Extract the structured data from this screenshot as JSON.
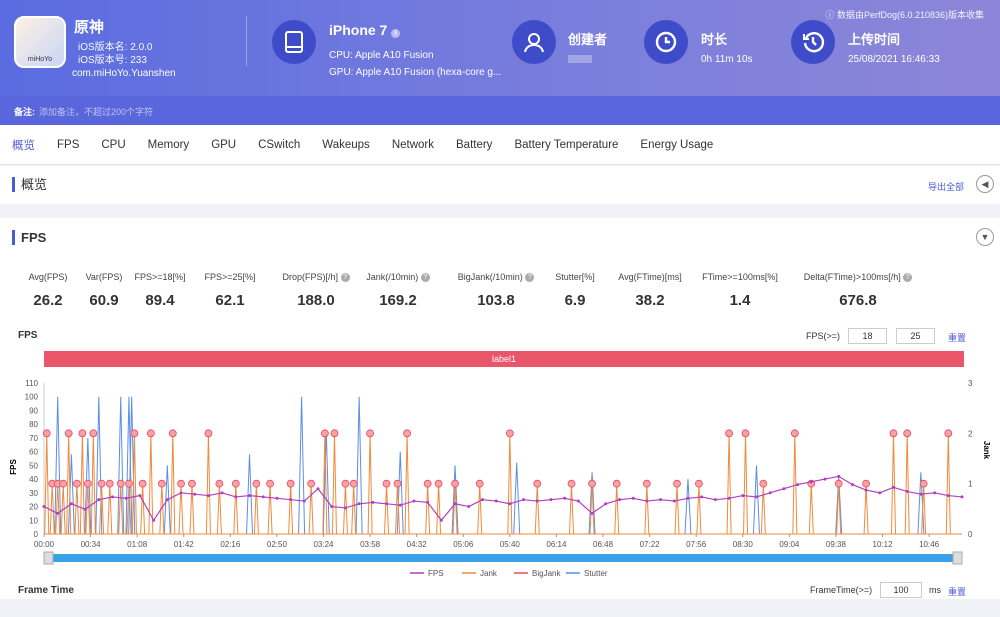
{
  "header": {
    "app_name": "原神",
    "ios_version_name": "iOS版本名: 2.0.0",
    "ios_version_code": "iOS版本号: 233",
    "package": "com.miHoYo.Yuanshen",
    "app_icon_text": "miHoYo",
    "device": "iPhone 7",
    "cpu": "CPU: Apple A10 Fusion",
    "gpu": "GPU: Apple A10 Fusion (hexa-core g...",
    "creator_label": "创建者",
    "duration_label": "时长",
    "duration": "0h 11m 10s",
    "upload_label": "上传时间",
    "upload_time": "25/08/2021 16:46:33",
    "source_note": "数据由PerfDog(6.0.210836)版本收集",
    "note_label": "备注:",
    "note_placeholder": "添加备注，不超过200个字符"
  },
  "tabs": [
    "概览",
    "FPS",
    "CPU",
    "Memory",
    "GPU",
    "CSwitch",
    "Wakeups",
    "Network",
    "Battery",
    "Battery Temperature",
    "Energy Usage"
  ],
  "overview": {
    "title": "概览",
    "export": "导出全部"
  },
  "fps_section": {
    "title": "FPS",
    "stats": [
      {
        "label": "Avg(FPS)",
        "value": "26.2"
      },
      {
        "label": "Var(FPS)",
        "value": "60.9"
      },
      {
        "label": "FPS>=18[%]",
        "value": "89.4"
      },
      {
        "label": "FPS>=25[%]",
        "value": "62.1"
      },
      {
        "label": "Drop(FPS)[/h]",
        "value": "188.0",
        "help": true
      },
      {
        "label": "Jank(/10min)",
        "value": "169.2",
        "help": true
      },
      {
        "label": "BigJank(/10min)",
        "value": "103.8",
        "help": true
      },
      {
        "label": "Stutter[%]",
        "value": "6.9"
      },
      {
        "label": "Avg(FTime)[ms]",
        "value": "38.2"
      },
      {
        "label": "FTime>=100ms[%]",
        "value": "1.4"
      },
      {
        "label": "Delta(FTime)>100ms[/h]",
        "value": "676.8",
        "help": true
      }
    ],
    "chart_title": "FPS",
    "threshold_label": "FPS(>=)",
    "threshold1": "18",
    "threshold2": "25",
    "reset": "重置",
    "label_bar": "label1"
  },
  "frame_time": {
    "title": "Frame Time",
    "threshold_label": "FrameTime(>=)",
    "threshold": "100",
    "unit": "ms",
    "reset": "重置"
  },
  "chart_data": {
    "type": "line",
    "ylabel": "FPS",
    "y2label": "Jank",
    "ylim": [
      0,
      110
    ],
    "y2lim": [
      0,
      3
    ],
    "yticks": [
      0,
      10,
      20,
      30,
      40,
      50,
      60,
      70,
      80,
      90,
      100,
      110
    ],
    "y2ticks": [
      0,
      1,
      2,
      3
    ],
    "xlabels": [
      "00:00",
      "00:34",
      "01:08",
      "01:42",
      "02:16",
      "02:50",
      "03:24",
      "03:58",
      "04:32",
      "05:06",
      "05:40",
      "06:14",
      "06:48",
      "07:22",
      "07:56",
      "08:30",
      "09:04",
      "09:38",
      "10:12",
      "10:46"
    ],
    "xmax_seconds": 670,
    "legend": [
      "FPS",
      "Jank",
      "BigJank",
      "Stutter"
    ],
    "fps_step_seconds": 10,
    "fps": [
      20,
      15,
      22,
      18,
      25,
      27,
      26,
      28,
      10,
      25,
      30,
      29,
      28,
      30,
      27,
      28,
      27,
      26,
      25,
      24,
      33,
      20,
      19,
      22,
      23,
      22,
      21,
      24,
      23,
      10,
      22,
      20,
      25,
      24,
      22,
      25,
      24,
      25,
      26,
      24,
      15,
      22,
      25,
      26,
      24,
      25,
      24,
      26,
      27,
      25,
      26,
      28,
      27,
      30,
      33,
      36,
      38,
      40,
      42,
      36,
      32,
      30,
      34,
      31,
      29,
      30,
      28,
      27
    ],
    "jank": [
      [
        2,
        2
      ],
      [
        6,
        1
      ],
      [
        10,
        1
      ],
      [
        14,
        1
      ],
      [
        18,
        2
      ],
      [
        24,
        1
      ],
      [
        28,
        2
      ],
      [
        32,
        1
      ],
      [
        36,
        2
      ],
      [
        42,
        1
      ],
      [
        48,
        1
      ],
      [
        56,
        1
      ],
      [
        62,
        1
      ],
      [
        66,
        2
      ],
      [
        72,
        1
      ],
      [
        78,
        2
      ],
      [
        86,
        1
      ],
      [
        94,
        2
      ],
      [
        100,
        1
      ],
      [
        108,
        1
      ],
      [
        120,
        2
      ],
      [
        128,
        1
      ],
      [
        140,
        1
      ],
      [
        155,
        1
      ],
      [
        165,
        1
      ],
      [
        180,
        1
      ],
      [
        195,
        1
      ],
      [
        205,
        2
      ],
      [
        212,
        2
      ],
      [
        220,
        1
      ],
      [
        226,
        1
      ],
      [
        238,
        2
      ],
      [
        250,
        1
      ],
      [
        258,
        1
      ],
      [
        265,
        2
      ],
      [
        280,
        1
      ],
      [
        288,
        1
      ],
      [
        300,
        1
      ],
      [
        318,
        1
      ],
      [
        340,
        2
      ],
      [
        360,
        1
      ],
      [
        385,
        1
      ],
      [
        400,
        1
      ],
      [
        418,
        1
      ],
      [
        440,
        1
      ],
      [
        462,
        1
      ],
      [
        478,
        1
      ],
      [
        500,
        2
      ],
      [
        512,
        2
      ],
      [
        525,
        1
      ],
      [
        548,
        2
      ],
      [
        560,
        1
      ],
      [
        580,
        1
      ],
      [
        600,
        1
      ],
      [
        620,
        2
      ],
      [
        630,
        2
      ],
      [
        642,
        1
      ],
      [
        660,
        2
      ]
    ],
    "bigjank": [],
    "stutter": [
      [
        10,
        100
      ],
      [
        20,
        58
      ],
      [
        32,
        70
      ],
      [
        40,
        100
      ],
      [
        56,
        100
      ],
      [
        62,
        100
      ],
      [
        64,
        100
      ],
      [
        90,
        50
      ],
      [
        150,
        58
      ],
      [
        188,
        100
      ],
      [
        206,
        75
      ],
      [
        230,
        100
      ],
      [
        260,
        60
      ],
      [
        300,
        50
      ],
      [
        345,
        52
      ],
      [
        400,
        45
      ],
      [
        470,
        40
      ],
      [
        520,
        50
      ],
      [
        580,
        42
      ],
      [
        640,
        45
      ]
    ]
  }
}
